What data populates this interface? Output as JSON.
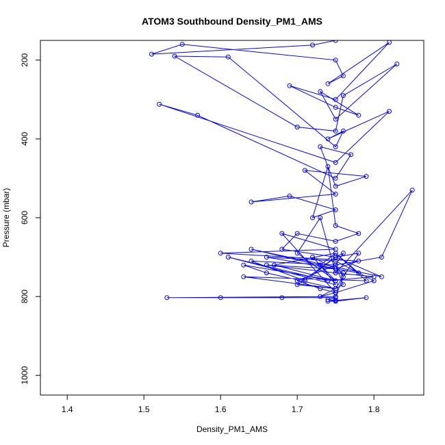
{
  "chart_data": {
    "type": "line",
    "title": "ATOM3 Southbound Density_PM1_AMS",
    "xlabel": "Density_PM1_AMS",
    "ylabel": "Pressure (mbar)",
    "xlim": [
      1.365,
      1.865
    ],
    "ylim": [
      1050,
      150
    ],
    "y_reversed": true,
    "x_ticks": [
      1.4,
      1.5,
      1.6,
      1.7,
      1.8
    ],
    "x_tick_labels": [
      "1.4",
      "1.5",
      "1.6",
      "1.7",
      "1.8"
    ],
    "y_ticks": [
      200,
      400,
      600,
      800,
      1000
    ],
    "y_tick_labels": [
      "200",
      "400",
      "600",
      "800",
      "1000"
    ],
    "grid": false,
    "series": [
      {
        "color": "#0000ff",
        "marker": "open-circle",
        "x": [
          1.75,
          1.72,
          1.51,
          1.55,
          1.75,
          1.76,
          1.74,
          1.82,
          1.75,
          1.69,
          1.75,
          1.78,
          1.73,
          1.75,
          1.83,
          1.76,
          1.75,
          1.7,
          1.54,
          1.61,
          1.75,
          1.76,
          1.74,
          1.82,
          1.75,
          1.52,
          1.57,
          1.75,
          1.77,
          1.73,
          1.75,
          1.79,
          1.71,
          1.75,
          1.64,
          1.69,
          1.75,
          1.72,
          1.74,
          1.75,
          1.78,
          1.75,
          1.7,
          1.68,
          1.75,
          1.76,
          1.75,
          1.81,
          1.85,
          1.75,
          1.73,
          1.7,
          1.75,
          1.63,
          1.66,
          1.75,
          1.78,
          1.75,
          1.71,
          1.64,
          1.75,
          1.76,
          1.73,
          1.75,
          1.68,
          1.75,
          1.6,
          1.78,
          1.75,
          1.66,
          1.75,
          1.8,
          1.74,
          1.61,
          1.75,
          1.73,
          1.75,
          1.79,
          1.63,
          1.75,
          1.7,
          1.75,
          1.81,
          1.64,
          1.75,
          1.76,
          1.72,
          1.75,
          1.67,
          1.75,
          1.78,
          1.66,
          1.75,
          1.8,
          1.75,
          1.73,
          1.7,
          1.75,
          1.76,
          1.75,
          1.53,
          1.6,
          1.68,
          1.75,
          1.74,
          1.75,
          1.79,
          1.75,
          1.74,
          1.75
        ],
        "y": [
          150,
          162,
          185,
          160,
          200,
          240,
          260,
          155,
          300,
          265,
          320,
          340,
          280,
          350,
          210,
          290,
          380,
          370,
          190,
          192,
          420,
          380,
          400,
          330,
          460,
          312,
          340,
          500,
          440,
          420,
          520,
          495,
          480,
          540,
          560,
          545,
          580,
          600,
          470,
          620,
          640,
          660,
          640,
          680,
          700,
          690,
          720,
          700,
          530,
          740,
          600,
          690,
          760,
          720,
          740,
          780,
          690,
          700,
          760,
          710,
          720,
          770,
          800,
          790,
          640,
          680,
          690,
          710,
          730,
          720,
          740,
          750,
          760,
          700,
          770,
          720,
          690,
          760,
          750,
          780,
          770,
          700,
          750,
          680,
          730,
          740,
          700,
          760,
          720,
          690,
          740,
          700,
          710,
          760,
          790,
          780,
          760,
          720,
          750,
          800,
          803,
          803,
          803,
          803,
          808,
          810,
          803,
          812,
          812,
          810
        ]
      }
    ]
  }
}
